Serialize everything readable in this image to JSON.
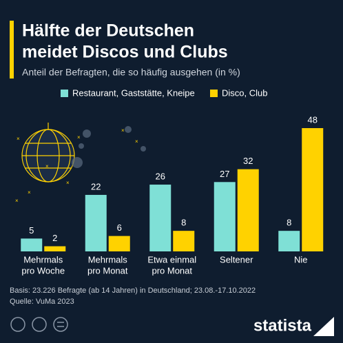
{
  "chart_data": {
    "type": "bar",
    "title": [
      "Hälfte der Deutschen",
      "meidet Discos und Clubs"
    ],
    "subtitle": "Anteil der Befragten, die so häufig ausgehen (in %)",
    "categories": [
      [
        "Mehrmals",
        "pro Woche"
      ],
      [
        "Mehrmals",
        "pro Monat"
      ],
      [
        "Etwa einmal",
        "pro Monat"
      ],
      [
        "Seltener"
      ],
      [
        "Nie"
      ]
    ],
    "series": [
      {
        "name": "Restaurant, Gaststätte, Kneipe",
        "color": "#7fe0d6",
        "values": [
          5,
          22,
          26,
          27,
          8
        ]
      },
      {
        "name": "Disco, Club",
        "color": "#ffd200",
        "values": [
          2,
          6,
          8,
          32,
          48
        ]
      }
    ],
    "footnote": "Basis: 23.226 Befragte (ab 14 Jahren) in Deutschland; 23.08.-17.10.2022",
    "source": "Quelle: VuMa 2023",
    "brand": "statista"
  }
}
